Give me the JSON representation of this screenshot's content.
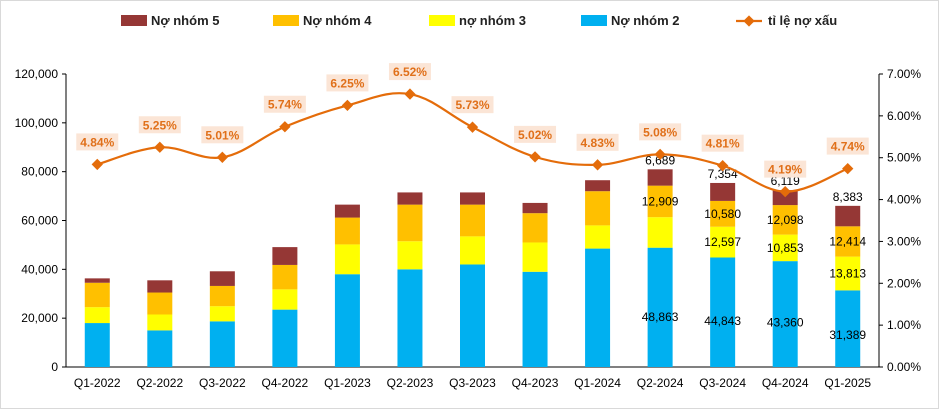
{
  "chart_data": {
    "type": "bar",
    "stacked": true,
    "categories": [
      "Q1-2022",
      "Q2-2022",
      "Q3-2022",
      "Q4-2022",
      "Q1-2023",
      "Q2-2023",
      "Q3-2023",
      "Q4-2023",
      "Q1-2024",
      "Q2-2024",
      "Q3-2024",
      "Q4-2024",
      "Q1-2025"
    ],
    "series": [
      {
        "name": "Nợ nhóm 2",
        "color": "#00b0f0",
        "values": [
          18000,
          15000,
          18700,
          23500,
          38000,
          40000,
          42000,
          39000,
          48500,
          48863,
          44843,
          43360,
          31389
        ]
      },
      {
        "name": "nợ nhóm 3",
        "color": "#ffff00",
        "values": [
          6500,
          6500,
          6200,
          8300,
          12200,
          11500,
          11500,
          12000,
          9500,
          12500,
          12597,
          10853,
          13813
        ]
      },
      {
        "name": "Nợ nhóm 4",
        "color": "#ffc000",
        "values": [
          10000,
          9000,
          8300,
          10000,
          11000,
          15000,
          13000,
          12000,
          14000,
          12909,
          10580,
          12098,
          12414
        ]
      },
      {
        "name": "Nợ nhóm 5",
        "color": "#953735",
        "values": [
          1800,
          5000,
          6000,
          7300,
          5300,
          5000,
          5000,
          4200,
          4500,
          6689,
          7354,
          6119,
          8383
        ]
      }
    ],
    "line_series": {
      "name": "tỉ lệ nợ xấu",
      "color": "#e46c0a",
      "values": [
        4.84,
        5.25,
        5.01,
        5.74,
        6.25,
        6.52,
        5.73,
        5.02,
        4.83,
        5.08,
        4.81,
        4.19,
        4.74
      ]
    },
    "rate_labels": [
      "4.84%",
      "5.25%",
      "5.01%",
      "5.74%",
      "6.25%",
      "6.52%",
      "5.73%",
      "5.02%",
      "4.83%",
      "5.08%",
      "4.81%",
      "4.19%",
      "4.74%"
    ],
    "segment_labels": [
      {
        "index": 9,
        "labels": [
          "48,863",
          "",
          "12,909",
          "6,689"
        ]
      },
      {
        "index": 10,
        "labels": [
          "44,843",
          "12,597",
          "10,580",
          "7,354"
        ]
      },
      {
        "index": 11,
        "labels": [
          "43,360",
          "10,853",
          "12,098",
          "6,119"
        ]
      },
      {
        "index": 12,
        "labels": [
          "31,389",
          "13,813",
          "12,414",
          "8,383"
        ]
      }
    ],
    "legend_order": [
      "Nợ nhóm 5",
      "Nợ nhóm 4",
      "nợ nhóm 3",
      "Nợ nhóm 2",
      "tỉ lệ nợ xấu"
    ],
    "legend_position": "top",
    "ylim": [
      0,
      120000
    ],
    "y_ticks": [
      0,
      20000,
      40000,
      60000,
      80000,
      100000,
      120000
    ],
    "y_tick_labels": [
      "0",
      "20,000",
      "40,000",
      "60,000",
      "80,000",
      "100,000",
      "120,000"
    ],
    "y2lim": [
      0,
      7
    ],
    "y2_ticks": [
      0,
      1,
      2,
      3,
      4,
      5,
      6,
      7
    ],
    "y2_tick_labels": [
      "0.00%",
      "1.00%",
      "2.00%",
      "3.00%",
      "4.00%",
      "5.00%",
      "6.00%",
      "7.00%"
    ],
    "grid": false
  }
}
